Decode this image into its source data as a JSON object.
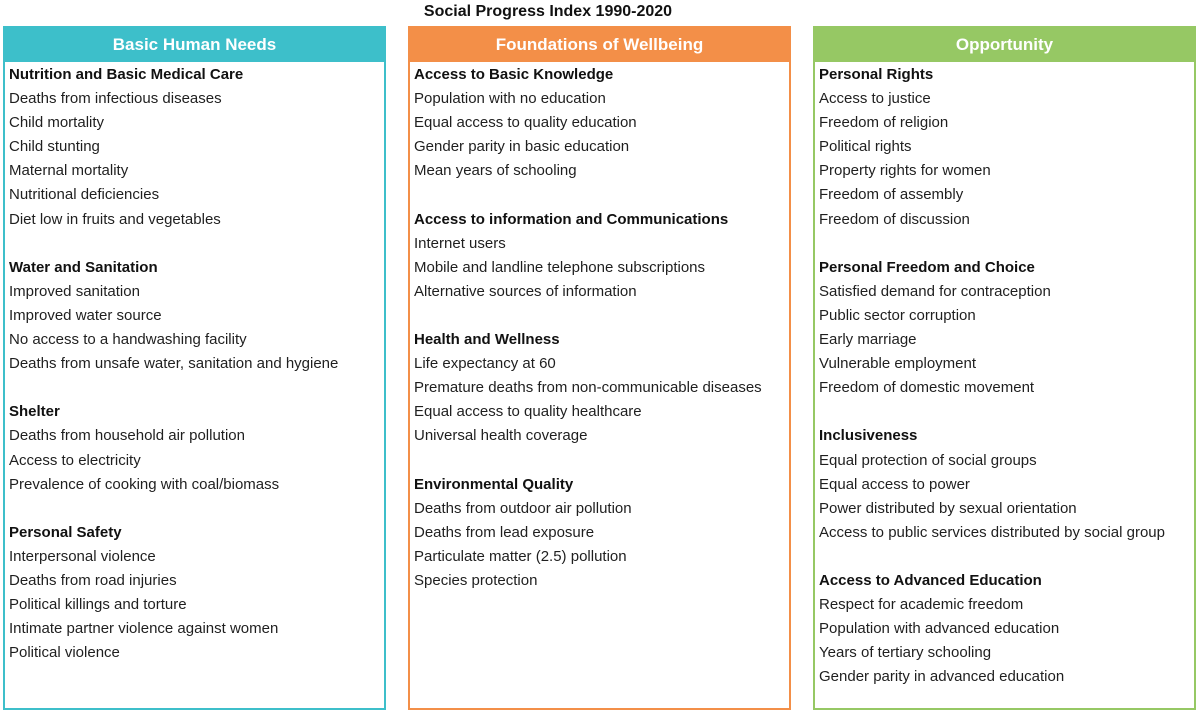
{
  "title": "Social Progress Index 1990-2020",
  "colors": {
    "basic_human_needs": "#3dbfca",
    "foundations_of_wellbeing": "#f38f48",
    "opportunity": "#96c864"
  },
  "columns": [
    {
      "header": "Basic Human Needs",
      "sections": [
        {
          "title": "Nutrition and Basic Medical Care",
          "items": [
            "Deaths from infectious diseases",
            "Child mortality",
            "Child stunting",
            "Maternal mortality",
            "Nutritional deficiencies",
            "Diet low in fruits and vegetables"
          ]
        },
        {
          "title": "Water and Sanitation",
          "items": [
            "Improved sanitation",
            "Improved water source",
            "No access to a handwashing facility",
            "Deaths from unsafe water, sanitation and hygiene"
          ]
        },
        {
          "title": "Shelter",
          "items": [
            "Deaths from household air pollution",
            "Access to electricity",
            "Prevalence of cooking with coal/biomass"
          ]
        },
        {
          "title": "Personal Safety",
          "items": [
            "Interpersonal violence",
            "Deaths from road injuries",
            "Political killings and torture",
            "Intimate partner violence against women",
            "Political violence"
          ]
        }
      ]
    },
    {
      "header": "Foundations of Wellbeing",
      "sections": [
        {
          "title": "Access to Basic Knowledge",
          "items": [
            "Population with no education",
            "Equal access to quality education",
            "Gender parity in basic education",
            "Mean years of schooling"
          ]
        },
        {
          "title": "Access to information and Communications",
          "items": [
            "Internet users",
            "Mobile and landline telephone subscriptions",
            "Alternative sources of information"
          ]
        },
        {
          "title": "Health and Wellness",
          "items": [
            "Life expectancy at 60",
            "Premature deaths from non-communicable diseases",
            "Equal access to quality healthcare",
            "Universal health coverage"
          ]
        },
        {
          "title": "Environmental Quality",
          "items": [
            "Deaths from outdoor air pollution",
            "Deaths from lead exposure",
            "Particulate matter (2.5) pollution",
            "Species protection"
          ]
        }
      ]
    },
    {
      "header": "Opportunity",
      "sections": [
        {
          "title": "Personal Rights",
          "items": [
            "Access to justice",
            "Freedom of religion",
            "Political rights",
            "Property rights for women",
            "Freedom of assembly",
            "Freedom of discussion"
          ]
        },
        {
          "title": "Personal Freedom and Choice",
          "items": [
            "Satisfied demand for contraception",
            "Public sector corruption",
            "Early marriage",
            "Vulnerable employment",
            "Freedom of domestic movement"
          ]
        },
        {
          "title": "Inclusiveness",
          "items": [
            "Equal protection of social groups",
            "Equal access to power",
            "Power distributed by sexual orientation",
            "Access to public services distributed by social group"
          ]
        },
        {
          "title": "Access to Advanced Education",
          "items": [
            "Respect for academic freedom",
            "Population with advanced education",
            "Years of tertiary schooling",
            "Gender parity in advanced education"
          ]
        }
      ]
    }
  ]
}
